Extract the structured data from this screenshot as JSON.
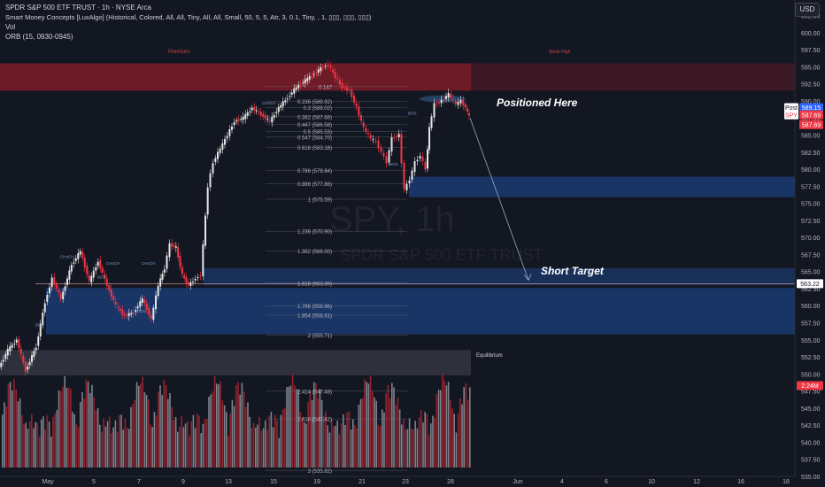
{
  "header": {
    "line1": "SPDR S&P 500 ETF TRUST · 1h · NYSE Arca",
    "line2": "Smart Money Concepts [LuxAlgo] (Historical, Colored, All, All, Tiny, All, All, Small, 50, 5, 5, Atr, 3, 0.1, Tiny, , 1, ▯▯▯, ▯▯▯, ▯▯▯)",
    "line3": "Vol",
    "line4": "ORB (15, 0930-0945)"
  },
  "currency_button": "USD",
  "watermark": {
    "symbol": "SPY, 1h",
    "name": "SPDR S&P 500 ETF TRUST"
  },
  "annotations": {
    "positioned": "Positioned Here",
    "short_target": "Short Target",
    "premium": "Premium",
    "equilibrium": "Equilibrium",
    "weak_high": "Weak High",
    "smc_labels": [
      "BOS",
      "CHoCH",
      "BOS",
      "CHoCH",
      "BOS",
      "CHoCH",
      "CHoCH",
      "BOS",
      "BOS"
    ]
  },
  "price_tags": {
    "post": "Post",
    "post_price": "589.15",
    "spy": "SPY",
    "spy_price": "587.69",
    "third_price": "587.69",
    "level": "563.22",
    "volume": "2.24M"
  },
  "colors": {
    "bg": "#131722",
    "up": "#e6e6e6",
    "down": "#f23645",
    "premium": "#8b1e2a",
    "discount": "#1f4f9c",
    "equilibrium": "#3a3d47",
    "volume_up": "#9a9da6",
    "volume_down": "#b22833"
  },
  "chart_data": {
    "type": "candlestick",
    "symbol": "SPY",
    "timeframe": "1h",
    "y_axis_ticks": [
      602.5,
      600.0,
      597.5,
      595.0,
      592.5,
      590.0,
      587.5,
      585.0,
      582.5,
      580.0,
      577.5,
      575.0,
      572.5,
      570.0,
      567.5,
      565.0,
      562.5,
      560.0,
      557.5,
      555.0,
      552.5,
      550.0,
      547.5,
      545.0,
      542.5,
      540.0,
      537.5,
      535.0
    ],
    "ylim": [
      535.0,
      604.0
    ],
    "x_axis_ticks": [
      "May",
      "5",
      "7",
      "9",
      "13",
      "15",
      "19",
      "21",
      "23",
      "28",
      "Jun",
      "4",
      "6",
      "10",
      "12",
      "16",
      "18"
    ],
    "price_path": [
      [
        0,
        551.0
      ],
      [
        10,
        553.5
      ],
      [
        20,
        555.0
      ],
      [
        30,
        550.5
      ],
      [
        42,
        554.0
      ],
      [
        52,
        560.5
      ],
      [
        60,
        564.0
      ],
      [
        70,
        561.0
      ],
      [
        82,
        566.0
      ],
      [
        92,
        568.0
      ],
      [
        102,
        563.5
      ],
      [
        112,
        566.5
      ],
      [
        122,
        563.0
      ],
      [
        132,
        560.0
      ],
      [
        142,
        558.5
      ],
      [
        152,
        559.0
      ],
      [
        162,
        561.0
      ],
      [
        172,
        558.0
      ],
      [
        180,
        563.0
      ],
      [
        187,
        565.5
      ],
      [
        193,
        569.0
      ],
      [
        200,
        568.5
      ],
      [
        207,
        564.5
      ],
      [
        214,
        563.0
      ],
      [
        222,
        564.0
      ],
      [
        228,
        564.5
      ],
      [
        236,
        577.5
      ],
      [
        242,
        581.0
      ],
      [
        250,
        583.0
      ],
      [
        258,
        585.0
      ],
      [
        266,
        587.0
      ],
      [
        276,
        587.5
      ],
      [
        286,
        589.0
      ],
      [
        296,
        588.0
      ],
      [
        306,
        587.0
      ],
      [
        316,
        589.0
      ],
      [
        326,
        590.5
      ],
      [
        336,
        592.0
      ],
      [
        346,
        593.0
      ],
      [
        356,
        594.0
      ],
      [
        366,
        595.0
      ],
      [
        372,
        595.3
      ],
      [
        380,
        593.5
      ],
      [
        388,
        592.0
      ],
      [
        396,
        591.5
      ],
      [
        404,
        589.0
      ],
      [
        412,
        586.0
      ],
      [
        420,
        584.5
      ],
      [
        426,
        584.0
      ],
      [
        432,
        582.5
      ],
      [
        438,
        581.0
      ],
      [
        444,
        584.5
      ],
      [
        452,
        585.0
      ],
      [
        458,
        577.0
      ],
      [
        464,
        578.5
      ],
      [
        470,
        581.0
      ],
      [
        476,
        582.0
      ],
      [
        482,
        580.0
      ],
      [
        486,
        586.0
      ],
      [
        492,
        589.5
      ],
      [
        500,
        590.0
      ],
      [
        508,
        591.0
      ],
      [
        516,
        589.5
      ],
      [
        522,
        590.0
      ],
      [
        527,
        589.0
      ],
      [
        531,
        587.7
      ]
    ],
    "zones": [
      {
        "name": "Premium",
        "from": 591.5,
        "to": 595.5
      },
      {
        "name": "Discount block 1",
        "from": 575.9,
        "to": 578.9
      },
      {
        "name": "Discount block 2",
        "from": 563.0,
        "to": 565.5
      },
      {
        "name": "Discount block 3",
        "from": 555.8,
        "to": 562.6
      },
      {
        "name": "Equilibrium",
        "from": 549.8,
        "to": 553.5
      }
    ],
    "fib_levels": [
      {
        "label": "0.147",
        "price": 592.1
      },
      {
        "label": "0.236 (589.92)",
        "price": 589.92
      },
      {
        "label": "0.3 (589.02)",
        "price": 589.02
      },
      {
        "label": "0.382 (587.68)",
        "price": 587.68
      },
      {
        "label": "0.447 (586.58)",
        "price": 586.58
      },
      {
        "label": "0.5 (585.53)",
        "price": 585.53
      },
      {
        "label": "0.547 (584.70)",
        "price": 584.7
      },
      {
        "label": "0.618 (583.18)",
        "price": 583.18
      },
      {
        "label": "0.786 (579.84)",
        "price": 579.84
      },
      {
        "label": "0.886 (577.86)",
        "price": 577.86
      },
      {
        "label": "1 (575.59)",
        "price": 575.59
      },
      {
        "label": "1.236 (570.90)",
        "price": 570.9
      },
      {
        "label": "1.382 (568.00)",
        "price": 568.0
      },
      {
        "label": "1.618 (563.30)",
        "price": 563.3
      },
      {
        "label": "1.786 (559.96)",
        "price": 559.96
      },
      {
        "label": "1.854 (558.61)",
        "price": 558.61
      },
      {
        "label": "2 (555.71)",
        "price": 555.71
      },
      {
        "label": "2.414 (547.48)",
        "price": 547.48
      },
      {
        "label": "2.618 (543.42)",
        "price": 543.42
      },
      {
        "label": "3 (535.82)",
        "price": 535.82
      }
    ],
    "target_level": 563.22
  }
}
